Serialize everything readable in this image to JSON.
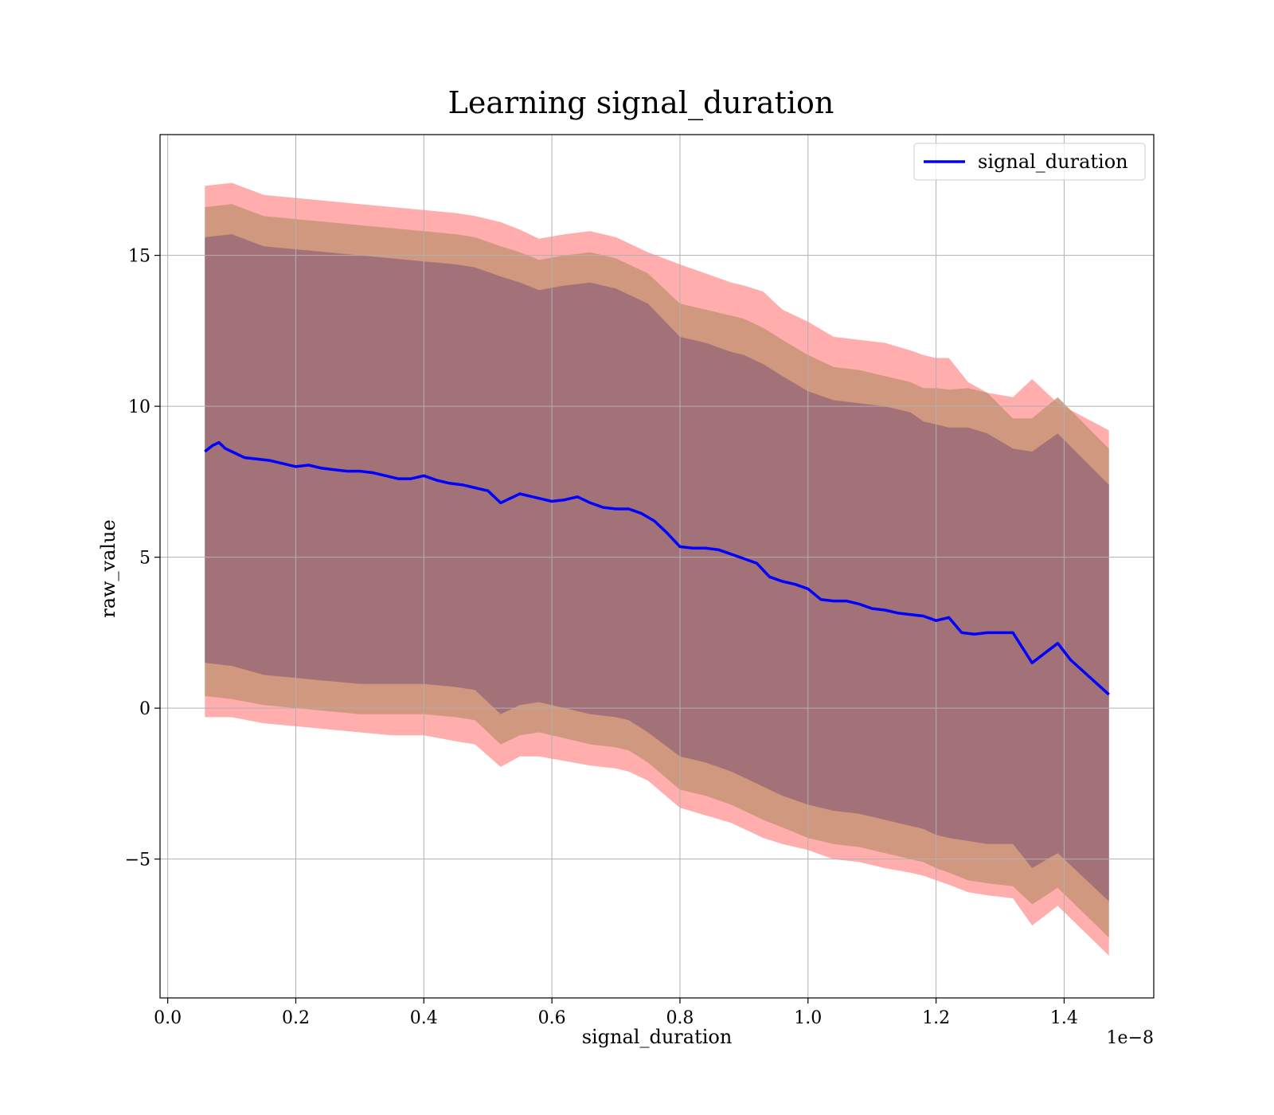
{
  "chart_data": {
    "type": "line",
    "title": "Learning signal_duration",
    "xlabel": "signal_duration",
    "ylabel": "raw_value",
    "x_offset_label": "1e−8",
    "xlim": [
      -0.012,
      1.54
    ],
    "ylim": [
      -9.6,
      19.0
    ],
    "xticks": [
      0.0,
      0.2,
      0.4,
      0.6,
      0.8,
      1.0,
      1.2,
      1.4
    ],
    "xtick_labels": [
      "0.0",
      "0.2",
      "0.4",
      "0.6",
      "0.8",
      "1.0",
      "1.2",
      "1.4"
    ],
    "yticks": [
      -5,
      0,
      5,
      10,
      15
    ],
    "ytick_labels": [
      "−5",
      "0",
      "5",
      "10",
      "15"
    ],
    "grid": true,
    "legend": {
      "position": "top-right",
      "entries": [
        "signal_duration"
      ]
    },
    "colors": {
      "line": "#0000ff",
      "band_outer": "#ff9999",
      "band_middle": "#c89477",
      "band_inner": "#a07078"
    },
    "series": [
      {
        "name": "signal_duration",
        "x": [
          0.058,
          0.07,
          0.08,
          0.09,
          0.1,
          0.12,
          0.14,
          0.16,
          0.18,
          0.2,
          0.22,
          0.24,
          0.26,
          0.28,
          0.3,
          0.32,
          0.34,
          0.36,
          0.38,
          0.4,
          0.42,
          0.44,
          0.46,
          0.48,
          0.5,
          0.52,
          0.54,
          0.55,
          0.57,
          0.6,
          0.62,
          0.64,
          0.66,
          0.68,
          0.7,
          0.72,
          0.74,
          0.76,
          0.78,
          0.8,
          0.82,
          0.84,
          0.86,
          0.88,
          0.9,
          0.92,
          0.94,
          0.96,
          0.98,
          1.0,
          1.02,
          1.04,
          1.06,
          1.08,
          1.1,
          1.12,
          1.14,
          1.16,
          1.18,
          1.2,
          1.22,
          1.24,
          1.26,
          1.28,
          1.3,
          1.32,
          1.35,
          1.39,
          1.41,
          1.47
        ],
        "values": [
          8.5,
          8.7,
          8.8,
          8.6,
          8.5,
          8.3,
          8.25,
          8.2,
          8.1,
          8.0,
          8.05,
          7.95,
          7.9,
          7.85,
          7.85,
          7.8,
          7.7,
          7.6,
          7.6,
          7.7,
          7.55,
          7.45,
          7.4,
          7.3,
          7.2,
          6.8,
          7.0,
          7.1,
          7.0,
          6.85,
          6.9,
          7.0,
          6.8,
          6.65,
          6.6,
          6.6,
          6.45,
          6.2,
          5.8,
          5.35,
          5.3,
          5.3,
          5.25,
          5.1,
          4.95,
          4.8,
          4.35,
          4.2,
          4.1,
          3.95,
          3.6,
          3.55,
          3.55,
          3.45,
          3.3,
          3.25,
          3.15,
          3.1,
          3.05,
          2.9,
          3.0,
          2.5,
          2.45,
          2.5,
          2.5,
          2.5,
          1.5,
          2.15,
          1.6,
          0.45
        ]
      }
    ],
    "bands": [
      {
        "color": "band_outer",
        "upper": [
          17.3,
          17.4,
          17.0,
          16.9,
          16.8,
          16.7,
          16.6,
          16.5,
          16.4,
          16.3,
          16.1,
          15.85,
          15.55,
          15.7,
          15.8,
          15.6,
          15.4,
          15.1,
          14.7,
          14.4,
          14.1,
          14.0,
          13.8,
          13.2,
          12.8,
          12.3,
          12.2,
          12.1,
          11.85,
          11.7,
          11.6,
          11.6,
          10.8,
          10.45,
          10.3,
          10.9,
          10.1,
          9.2
        ],
        "lower": [
          -0.3,
          -0.3,
          -0.5,
          -0.6,
          -0.7,
          -0.8,
          -0.9,
          -0.9,
          -1.1,
          -1.2,
          -1.95,
          -1.6,
          -1.6,
          -1.75,
          -1.9,
          -2.0,
          -2.1,
          -2.4,
          -3.3,
          -3.55,
          -3.8,
          -4.0,
          -4.3,
          -4.5,
          -4.7,
          -5.0,
          -5.1,
          -5.3,
          -5.45,
          -5.55,
          -5.7,
          -5.85,
          -6.1,
          -6.2,
          -6.3,
          -7.2,
          -6.55,
          -8.2
        ],
        "x": [
          0.058,
          0.1,
          0.15,
          0.2,
          0.25,
          0.3,
          0.35,
          0.4,
          0.45,
          0.48,
          0.52,
          0.55,
          0.58,
          0.62,
          0.66,
          0.7,
          0.72,
          0.75,
          0.8,
          0.84,
          0.88,
          0.9,
          0.93,
          0.96,
          1.0,
          1.04,
          1.08,
          1.12,
          1.16,
          1.18,
          1.2,
          1.22,
          1.25,
          1.28,
          1.32,
          1.35,
          1.39,
          1.47
        ]
      },
      {
        "color": "band_middle",
        "upper": [
          16.6,
          16.7,
          16.3,
          16.2,
          16.1,
          16.0,
          15.9,
          15.8,
          15.7,
          15.6,
          15.3,
          15.1,
          14.85,
          15.0,
          15.1,
          14.9,
          14.7,
          14.4,
          13.4,
          13.2,
          13.0,
          12.9,
          12.6,
          12.2,
          11.7,
          11.3,
          11.2,
          11.0,
          10.8,
          10.6,
          10.6,
          10.55,
          10.6,
          10.45,
          9.6,
          9.6,
          10.3,
          8.6
        ],
        "lower": [
          0.4,
          0.3,
          0.1,
          0.0,
          -0.1,
          -0.2,
          -0.2,
          -0.2,
          -0.3,
          -0.4,
          -1.2,
          -0.9,
          -0.8,
          -1.0,
          -1.2,
          -1.3,
          -1.4,
          -1.8,
          -2.7,
          -2.9,
          -3.2,
          -3.4,
          -3.7,
          -3.95,
          -4.3,
          -4.5,
          -4.6,
          -4.8,
          -5.0,
          -5.1,
          -5.3,
          -5.45,
          -5.7,
          -5.8,
          -5.9,
          -6.5,
          -5.95,
          -7.6
        ],
        "x": [
          0.058,
          0.1,
          0.15,
          0.2,
          0.25,
          0.3,
          0.35,
          0.4,
          0.45,
          0.48,
          0.52,
          0.55,
          0.58,
          0.62,
          0.66,
          0.7,
          0.72,
          0.75,
          0.8,
          0.84,
          0.88,
          0.9,
          0.93,
          0.96,
          1.0,
          1.04,
          1.08,
          1.12,
          1.16,
          1.18,
          1.2,
          1.22,
          1.25,
          1.28,
          1.32,
          1.35,
          1.39,
          1.47
        ]
      },
      {
        "color": "band_inner",
        "upper": [
          15.6,
          15.7,
          15.3,
          15.2,
          15.1,
          15.0,
          14.9,
          14.8,
          14.7,
          14.6,
          14.3,
          14.1,
          13.85,
          14.0,
          14.1,
          13.9,
          13.7,
          13.4,
          12.3,
          12.1,
          11.8,
          11.7,
          11.4,
          11.0,
          10.5,
          10.2,
          10.1,
          10.0,
          9.8,
          9.5,
          9.4,
          9.3,
          9.3,
          9.1,
          8.6,
          8.5,
          9.1,
          7.4
        ],
        "lower": [
          1.5,
          1.4,
          1.1,
          1.0,
          0.9,
          0.8,
          0.8,
          0.8,
          0.7,
          0.6,
          -0.2,
          0.1,
          0.2,
          0.0,
          -0.2,
          -0.3,
          -0.4,
          -0.8,
          -1.6,
          -1.8,
          -2.1,
          -2.3,
          -2.6,
          -2.9,
          -3.2,
          -3.4,
          -3.5,
          -3.7,
          -3.9,
          -4.0,
          -4.2,
          -4.3,
          -4.4,
          -4.5,
          -4.5,
          -5.3,
          -4.8,
          -6.4
        ],
        "x": [
          0.058,
          0.1,
          0.15,
          0.2,
          0.25,
          0.3,
          0.35,
          0.4,
          0.45,
          0.48,
          0.52,
          0.55,
          0.58,
          0.62,
          0.66,
          0.7,
          0.72,
          0.75,
          0.8,
          0.84,
          0.88,
          0.9,
          0.93,
          0.96,
          1.0,
          1.04,
          1.08,
          1.12,
          1.16,
          1.18,
          1.2,
          1.22,
          1.25,
          1.28,
          1.32,
          1.35,
          1.39,
          1.47
        ]
      }
    ]
  }
}
